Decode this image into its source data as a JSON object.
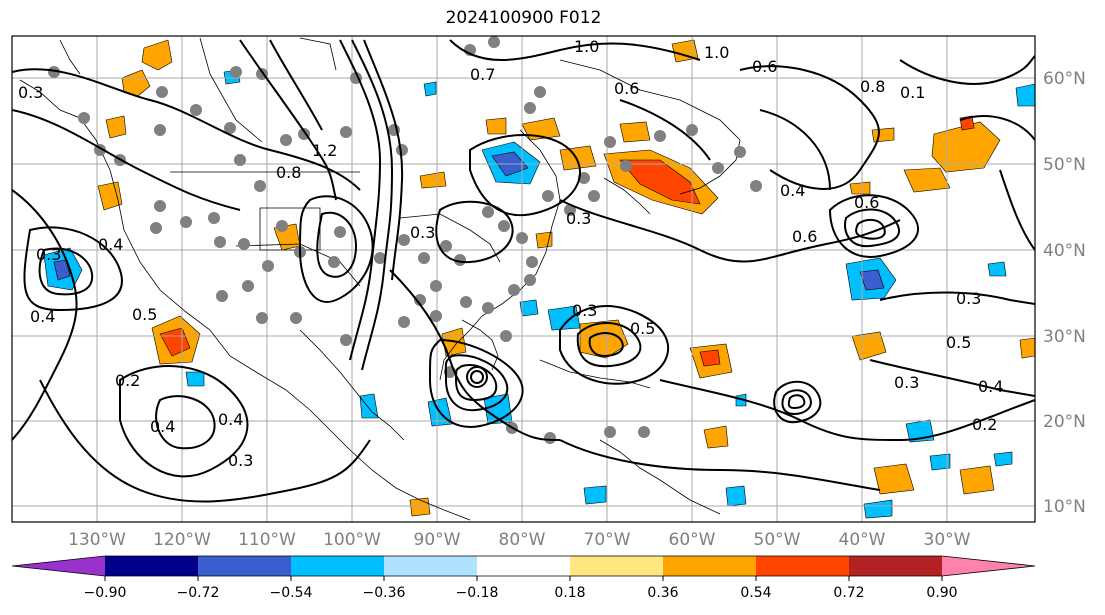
{
  "title": "2024100900 F012",
  "lon_labels": [
    "130°W",
    "120°W",
    "110°W",
    "100°W",
    "90°W",
    "80°W",
    "70°W",
    "60°W",
    "50°W",
    "40°W",
    "30°W"
  ],
  "lat_labels": [
    "60°N",
    "50°N",
    "40°N",
    "30°N",
    "20°N",
    "10°N"
  ],
  "colorbar": {
    "ticks": [
      "−0.90",
      "−0.72",
      "−0.54",
      "−0.36",
      "−0.18",
      "0.18",
      "0.36",
      "0.54",
      "0.72",
      "0.90"
    ],
    "colors": [
      "#9932cc",
      "#00008b",
      "#3a5fcd",
      "#00bfff",
      "#b0e2ff",
      "#ffffff",
      "#ffe680",
      "#ffa500",
      "#ff4500",
      "#b22222",
      "#ff82ab"
    ]
  },
  "contour_labels": [
    "0.3",
    "0.4",
    "0.5",
    "0.6",
    "0.8",
    "1.0",
    "1.2",
    "0.2",
    "0.1",
    "0.7"
  ],
  "colors": {
    "positive": "#ffa500",
    "positive_strong": "#ff4500",
    "negative": "#00bfff",
    "negative_strong": "#3a5fcd",
    "station": "#808080"
  }
}
